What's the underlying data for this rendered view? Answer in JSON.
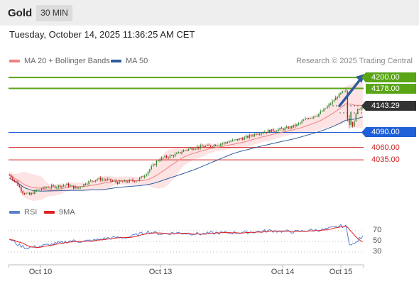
{
  "header": {
    "title": "Gold",
    "timeframe": "30 MIN"
  },
  "datetime": "Tuesday, October 14, 2025 11:36:25 AM CET",
  "legend": {
    "bollinger_label": "MA 20 + Bollinger Bands",
    "bollinger_color": "#f08080",
    "ma50_label": "MA 50",
    "ma50_color": "#2f5b9a"
  },
  "credit": "Research © 2025 Trading Central",
  "indicator_legend": {
    "rsi_label": "RSI",
    "rsi_color": "#5a7fd0",
    "ma9_label": "9MA",
    "ma9_color": "#e02020"
  },
  "chart_data": [
    {
      "type": "candlestick",
      "instrument": "Gold",
      "timeframe": "30 MIN",
      "ylim": [
        3950,
        4220
      ],
      "x_tick_labels": [
        "Oct 10",
        "Oct 13",
        "Oct 14",
        "Oct 15"
      ],
      "last_price": 4143.29,
      "levels": [
        {
          "value": 4200.0,
          "label": "4200.00",
          "color": "#5aa516",
          "kind": "resistance"
        },
        {
          "value": 4178.0,
          "label": "4178.00",
          "color": "#5aa516",
          "kind": "resistance"
        },
        {
          "value": 4143.29,
          "label": "4143.29",
          "color": "#333333",
          "kind": "last"
        },
        {
          "value": 4090.0,
          "label": "4090.00",
          "color": "#1f5fd8",
          "kind": "pivot"
        },
        {
          "value": 4060.0,
          "label": "4060.00",
          "color": "#d02020",
          "kind": "support"
        },
        {
          "value": 4035.0,
          "label": "4035.00",
          "color": "#d02020",
          "kind": "support"
        }
      ],
      "price_keypoints": [
        [
          0,
          4005
        ],
        [
          4,
          3990
        ],
        [
          8,
          3970
        ],
        [
          12,
          3965
        ],
        [
          16,
          3974
        ],
        [
          22,
          3980
        ],
        [
          28,
          3982
        ],
        [
          34,
          3985
        ],
        [
          40,
          3978
        ],
        [
          46,
          3990
        ],
        [
          52,
          3997
        ],
        [
          58,
          3995
        ],
        [
          64,
          3990
        ],
        [
          70,
          3992
        ],
        [
          76,
          3995
        ],
        [
          80,
          4005
        ],
        [
          84,
          4020
        ],
        [
          88,
          4035
        ],
        [
          92,
          4040
        ],
        [
          98,
          4045
        ],
        [
          104,
          4055
        ],
        [
          110,
          4060
        ],
        [
          116,
          4062
        ],
        [
          122,
          4065
        ],
        [
          128,
          4070
        ],
        [
          134,
          4075
        ],
        [
          140,
          4080
        ],
        [
          146,
          4088
        ],
        [
          152,
          4092
        ],
        [
          158,
          4095
        ],
        [
          164,
          4098
        ],
        [
          170,
          4105
        ],
        [
          176,
          4118
        ],
        [
          182,
          4125
        ],
        [
          186,
          4135
        ],
        [
          190,
          4148
        ],
        [
          194,
          4162
        ],
        [
          197,
          4170
        ],
        [
          199,
          4172
        ],
        [
          201,
          4120
        ],
        [
          203,
          4105
        ],
        [
          206,
          4135
        ],
        [
          209,
          4143
        ]
      ],
      "rsi": {
        "levels": [
          70,
          50,
          30
        ],
        "keypoints": [
          [
            0,
            55
          ],
          [
            5,
            44
          ],
          [
            10,
            38
          ],
          [
            16,
            40
          ],
          [
            22,
            43
          ],
          [
            30,
            47
          ],
          [
            36,
            51
          ],
          [
            44,
            50
          ],
          [
            50,
            52
          ],
          [
            58,
            56
          ],
          [
            64,
            57
          ],
          [
            70,
            58
          ],
          [
            76,
            63
          ],
          [
            82,
            68
          ],
          [
            90,
            64
          ],
          [
            98,
            66
          ],
          [
            106,
            65
          ],
          [
            114,
            64
          ],
          [
            122,
            66
          ],
          [
            130,
            66
          ],
          [
            138,
            67
          ],
          [
            146,
            68
          ],
          [
            154,
            70
          ],
          [
            162,
            69
          ],
          [
            170,
            68
          ],
          [
            178,
            71
          ],
          [
            186,
            72
          ],
          [
            192,
            76
          ],
          [
            196,
            79
          ],
          [
            199,
            78
          ],
          [
            201,
            47
          ],
          [
            204,
            44
          ],
          [
            207,
            55
          ],
          [
            209,
            58
          ]
        ]
      }
    }
  ]
}
